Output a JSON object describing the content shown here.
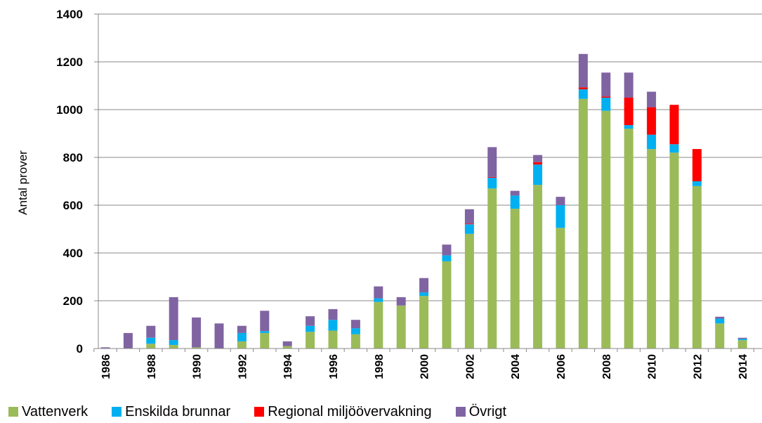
{
  "chart_data": {
    "type": "bar",
    "stacked": true,
    "title": "",
    "xlabel": "",
    "ylabel": "Antal prover",
    "ylim": [
      0,
      1400
    ],
    "yticks": [
      0,
      200,
      400,
      600,
      800,
      1000,
      1200,
      1400
    ],
    "grid": true,
    "legend_position": "bottom",
    "categories": [
      "1986",
      "1987",
      "1988",
      "1989",
      "1990",
      "1991",
      "1992",
      "1993",
      "1994",
      "1995",
      "1996",
      "1997",
      "1998",
      "1999",
      "2000",
      "2001",
      "2002",
      "2003",
      "2004",
      "2005",
      "2006",
      "2007",
      "2008",
      "2009",
      "2010",
      "2011",
      "2012",
      "2013",
      "2014"
    ],
    "xtick_labels": [
      "1986",
      "1988",
      "1990",
      "1992",
      "1994",
      "1996",
      "1998",
      "2000",
      "2002",
      "2004",
      "2006",
      "2008",
      "2010",
      "2012",
      "2014"
    ],
    "series": [
      {
        "name": "Vattenverk",
        "color": "#9bbb59",
        "values": [
          0,
          0,
          20,
          15,
          5,
          0,
          30,
          65,
          10,
          70,
          75,
          60,
          195,
          180,
          220,
          365,
          480,
          670,
          585,
          685,
          505,
          1045,
          995,
          920,
          835,
          820,
          680,
          105,
          35
        ]
      },
      {
        "name": "Enskilda brunnar",
        "color": "#00b0f0",
        "values": [
          0,
          0,
          25,
          20,
          0,
          0,
          35,
          8,
          0,
          25,
          45,
          25,
          15,
          0,
          15,
          25,
          40,
          45,
          55,
          85,
          95,
          40,
          55,
          15,
          60,
          35,
          20,
          20,
          5
        ]
      },
      {
        "name": "Regional miljöövervakning",
        "color": "#ff0000",
        "values": [
          0,
          0,
          0,
          0,
          0,
          0,
          0,
          0,
          0,
          0,
          0,
          0,
          0,
          0,
          0,
          0,
          3,
          3,
          0,
          10,
          0,
          8,
          5,
          115,
          115,
          165,
          135,
          0,
          0
        ]
      },
      {
        "name": "Övrigt",
        "color": "#8064a2",
        "values": [
          5,
          65,
          50,
          180,
          125,
          105,
          30,
          85,
          20,
          40,
          45,
          35,
          50,
          35,
          60,
          45,
          60,
          125,
          20,
          30,
          35,
          140,
          100,
          105,
          65,
          0,
          0,
          8,
          5
        ]
      }
    ]
  }
}
